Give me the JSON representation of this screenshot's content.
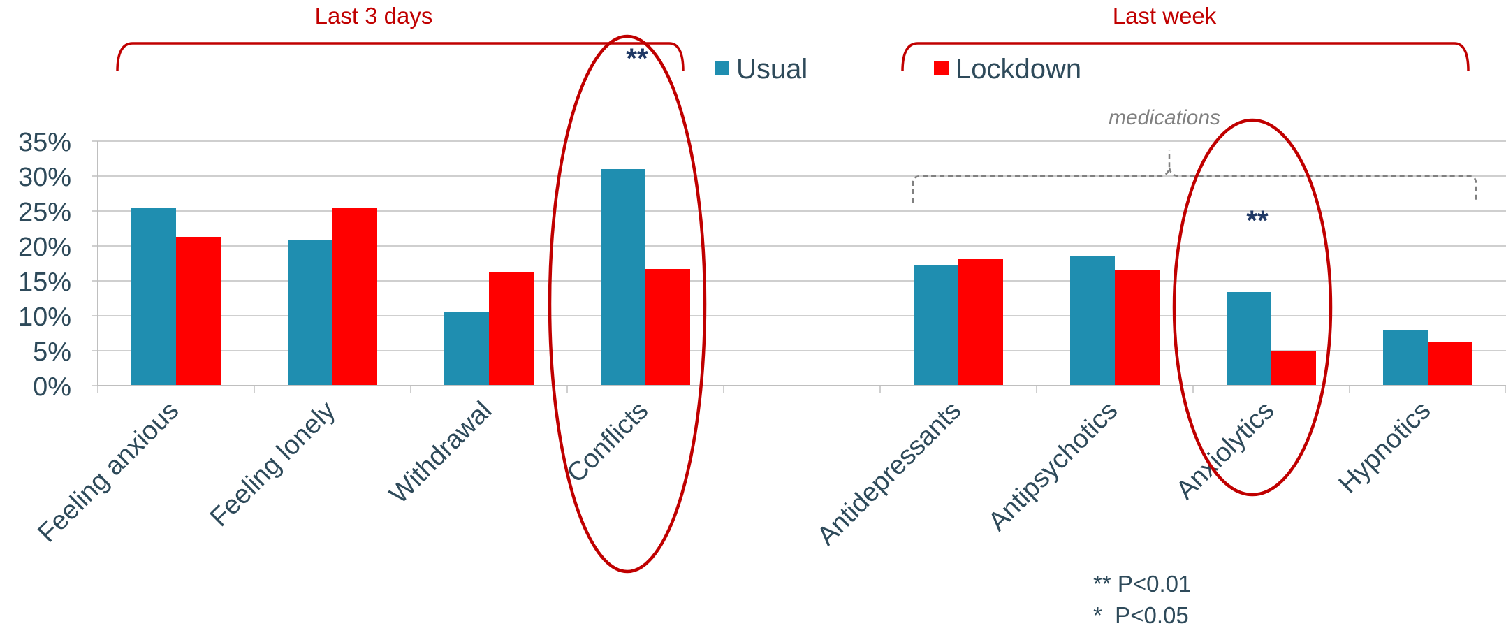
{
  "chart_data": {
    "type": "bar",
    "categories": [
      "Feeling anxious",
      "Feeling lonely",
      "Withdrawal",
      "Conflicts",
      "",
      "Antidepressants",
      "Antipsychotics",
      "Anxiolytics",
      "Hypnotics"
    ],
    "series": [
      {
        "name": "Usual",
        "color": "#1F8EB0",
        "values": [
          25.5,
          20.9,
          10.5,
          31.0,
          null,
          17.3,
          18.5,
          13.4,
          8.0
        ]
      },
      {
        "name": "Lockdown",
        "color": "#FF0000",
        "values": [
          21.3,
          25.5,
          16.2,
          16.7,
          null,
          18.1,
          16.5,
          4.9,
          6.3
        ]
      }
    ],
    "y_axis": {
      "min": 0,
      "max": 35,
      "step": 5,
      "tick_labels": [
        "0%",
        "5%",
        "10%",
        "15%",
        "20%",
        "25%",
        "30%",
        "35%"
      ]
    },
    "grid": true,
    "legend": {
      "position": "top-center",
      "items": [
        "Usual",
        "Lockdown"
      ]
    },
    "group_labels": {
      "left": "Last 3 days",
      "right": "Last week"
    },
    "medications_label": "medications",
    "significance_marks": [
      {
        "category": "Conflicts",
        "text": "**"
      },
      {
        "category": "Anxiolytics",
        "text": "**"
      }
    ],
    "footnotes": [
      "** P<0.01",
      "*  P<0.05"
    ],
    "colors": {
      "accent_red": "#C00000",
      "text": "#2E4A5A",
      "star": "#1F3864",
      "grid": "#BFBFBF",
      "note_grey": "#808080"
    }
  }
}
